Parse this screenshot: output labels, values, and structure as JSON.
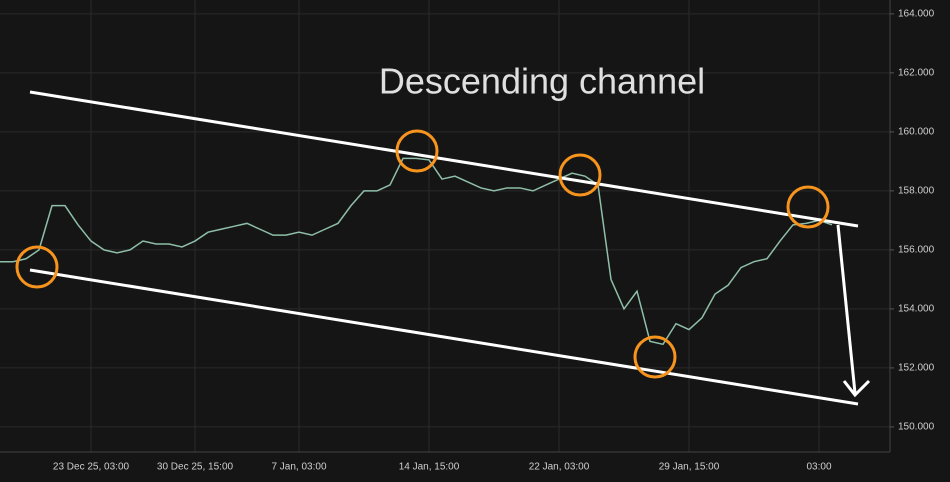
{
  "chart_data": {
    "type": "line",
    "title": "Descending channel",
    "categories": [
      null,
      null,
      null,
      null,
      null,
      null,
      null,
      "23 Dec 25, 03:00",
      null,
      null,
      null,
      null,
      null,
      null,
      null,
      "30 Dec 25, 15:00",
      null,
      null,
      null,
      null,
      null,
      null,
      null,
      "7 Jan, 03:00",
      null,
      null,
      null,
      null,
      null,
      null,
      null,
      null,
      null,
      "14 Jan, 15:00",
      null,
      null,
      null,
      null,
      null,
      null,
      null,
      null,
      null,
      "22 Jan, 03:00",
      null,
      null,
      null,
      null,
      null,
      null,
      null,
      null,
      null,
      "29 Jan, 15:00",
      null,
      null,
      null,
      null,
      null,
      null,
      null,
      null,
      null,
      "03:00",
      null
    ],
    "series": [
      {
        "color": "#8fbfa8",
        "values": [
          155.6,
          155.6,
          155.7,
          156.0,
          157.5,
          157.5,
          156.85,
          156.3,
          156.0,
          155.9,
          156.0,
          156.3,
          156.2,
          156.2,
          156.1,
          156.3,
          156.6,
          156.7,
          156.8,
          156.9,
          156.7,
          156.5,
          156.5,
          156.6,
          156.5,
          156.7,
          156.9,
          157.5,
          158.0,
          158.0,
          158.2,
          159.1,
          159.1,
          159.05,
          158.4,
          158.5,
          158.3,
          158.1,
          158.0,
          158.1,
          158.1,
          158.0,
          158.2,
          158.4,
          158.6,
          158.5,
          158.2,
          155.0,
          154.0,
          154.6,
          152.9,
          152.8,
          153.5,
          153.3,
          153.7,
          154.5,
          154.8,
          155.4,
          155.6,
          155.7,
          156.3,
          156.85,
          156.9,
          157.0,
          156.85
        ]
      }
    ],
    "ylim": [
      149.15,
      164.47
    ],
    "yticks": [
      {
        "value": 150,
        "label": "150.000"
      },
      {
        "value": 152,
        "label": "152.000"
      },
      {
        "value": 154,
        "label": "154.000"
      },
      {
        "value": 156,
        "label": "156.000"
      },
      {
        "value": 158,
        "label": "158.000"
      },
      {
        "value": 160,
        "label": "160.000"
      },
      {
        "value": 162,
        "label": "162.000"
      },
      {
        "value": 164,
        "label": "164.000"
      }
    ],
    "grid": true
  }
}
